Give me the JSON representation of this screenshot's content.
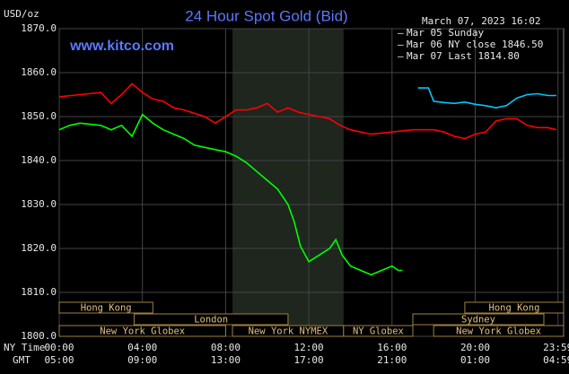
{
  "chart_data": {
    "type": "line",
    "title": "24 Hour Spot Gold (Bid)",
    "site": "www.kitco.com",
    "unit_label": "USD/oz",
    "legend_title": "March 07, 2023 16:02",
    "xlim": [
      0,
      24.25
    ],
    "ylim": [
      1800,
      1870
    ],
    "xticks": [
      {
        "value": 0,
        "label": "00:00"
      },
      {
        "value": 4,
        "label": "04:00"
      },
      {
        "value": 8,
        "label": "08:00"
      },
      {
        "value": 12,
        "label": "12:00"
      },
      {
        "value": 16,
        "label": "16:00"
      },
      {
        "value": 20,
        "label": "20:00"
      },
      {
        "value": 23.98,
        "label": "23:59"
      }
    ],
    "gmt_labels": [
      "05:00",
      "09:00",
      "13:00",
      "17:00",
      "21:00",
      "01:00",
      "04:59"
    ],
    "x_row_labels": [
      "NY Time",
      "GMT"
    ],
    "yticks": [
      {
        "value": 1800,
        "label": "1800.0"
      },
      {
        "value": 1810,
        "label": "1810.0"
      },
      {
        "value": 1820,
        "label": "1820.0"
      },
      {
        "value": 1830,
        "label": "1830.0"
      },
      {
        "value": 1840,
        "label": "1840.0"
      },
      {
        "value": 1850,
        "label": "1850.0"
      },
      {
        "value": 1860,
        "label": "1860.0"
      },
      {
        "value": 1870,
        "label": "1870.0"
      }
    ],
    "grid": true,
    "shade": [
      8.33,
      13.67
    ],
    "series": [
      {
        "name": "Mar 05 Sunday",
        "color": "#00c8ff",
        "x": [
          17.25,
          17.75,
          18,
          18.5,
          19,
          19.5,
          20,
          20.5,
          21,
          21.5,
          22,
          22.5,
          23,
          23.5,
          23.9
        ],
        "values": [
          1856.5,
          1856.5,
          1853.5,
          1853.2,
          1853,
          1853.3,
          1852.8,
          1852.5,
          1852,
          1852.5,
          1854.2,
          1855,
          1855.2,
          1854.8,
          1854.8
        ]
      },
      {
        "name": "Mar 06 NY close 1846.50",
        "color": "#ff0000",
        "x": [
          0,
          1,
          2,
          2.5,
          3,
          3.5,
          4,
          4.5,
          5,
          5.5,
          6,
          7,
          7.5,
          8,
          8.5,
          9,
          9.5,
          10,
          10.5,
          11,
          11.5,
          12,
          12.5,
          13,
          13.5,
          14,
          14.5,
          15,
          16,
          17,
          18,
          18.5,
          19,
          19.5,
          20,
          20.5,
          21,
          21.5,
          22,
          22.5,
          23,
          23.5,
          23.9
        ],
        "values": [
          1854.5,
          1855,
          1855.5,
          1853,
          1855,
          1857.5,
          1855.5,
          1854,
          1853.5,
          1852,
          1851.5,
          1850,
          1848.5,
          1850,
          1851.5,
          1851.5,
          1852,
          1853,
          1851,
          1852,
          1851,
          1850.5,
          1850,
          1849.5,
          1848,
          1847,
          1846.5,
          1846,
          1846.5,
          1847,
          1847,
          1846.5,
          1845.5,
          1845,
          1846,
          1846.5,
          1849,
          1849.5,
          1849.5,
          1848,
          1847.5,
          1847.5,
          1847
        ]
      },
      {
        "name": "Mar 07 Last 1814.80",
        "color": "#00ff00",
        "x": [
          0,
          0.5,
          1,
          2,
          2.5,
          3,
          3.5,
          4,
          4.5,
          5,
          5.5,
          6,
          6.5,
          7,
          7.5,
          8,
          8.5,
          9,
          9.5,
          10,
          10.5,
          11,
          11.3,
          11.6,
          12,
          12.5,
          13,
          13.3,
          13.6,
          14,
          14.5,
          15,
          15.5,
          16,
          16.3,
          16.5
        ],
        "values": [
          1847,
          1848,
          1848.5,
          1848,
          1847,
          1848,
          1845.5,
          1850.5,
          1848.5,
          1847,
          1846,
          1845,
          1843.5,
          1843,
          1842.5,
          1842,
          1841,
          1839.5,
          1837.5,
          1835.5,
          1833.5,
          1830,
          1826,
          1820.5,
          1817,
          1818.5,
          1820,
          1822,
          1818.5,
          1816,
          1815,
          1814,
          1815,
          1816,
          1815,
          1815
        ]
      }
    ],
    "session_rows": [
      [
        {
          "label": "Hong Kong",
          "start": 0,
          "end": 4.5
        },
        {
          "label": "Hong Kong",
          "start": 19.5,
          "end": 24.25
        }
      ],
      [
        {
          "label": "London",
          "start": 3.6,
          "end": 11
        },
        {
          "label": "Sydney",
          "start": 17,
          "end": 23.3
        }
      ],
      [
        {
          "label": "New York Globex",
          "start": 0,
          "end": 8
        },
        {
          "label": "New York NYMEX",
          "start": 8.33,
          "end": 13.67
        },
        {
          "label": "NY Globex",
          "start": 13.67,
          "end": 17
        },
        {
          "label": "New York Globex",
          "start": 18,
          "end": 24.25
        }
      ]
    ]
  }
}
